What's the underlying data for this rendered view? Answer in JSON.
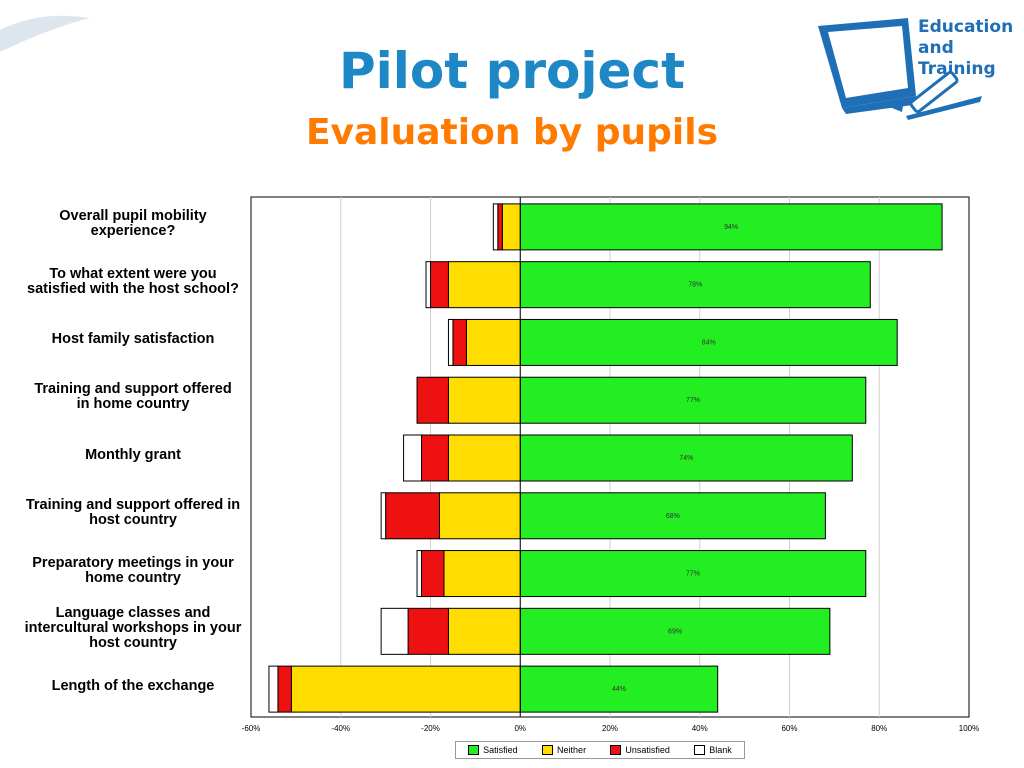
{
  "slide": {
    "title": "Pilot project",
    "subtitle": "Evaluation by pupils",
    "title_color": "#1e87c6",
    "subtitle_color": "#ff7a00"
  },
  "logo": {
    "icon": "computer-monitor-with-pencil-icon",
    "line1": "Education",
    "line2": "and",
    "line3": "Training",
    "color": "#1e6fb6"
  },
  "chart_data": {
    "type": "bar",
    "orientation": "horizontal",
    "stacked": "diverging",
    "categories": [
      [
        "Overall pupil mobility",
        "experience?"
      ],
      [
        "To what extent were you",
        "satisfied with the host school?"
      ],
      [
        "Host family satisfaction"
      ],
      [
        "Training and support offered",
        "in home country"
      ],
      [
        "Monthly grant"
      ],
      [
        "Training and support offered in",
        "host country"
      ],
      [
        "Preparatory meetings in your",
        "home country"
      ],
      [
        "Language classes and",
        "intercultural workshops in your",
        "host country"
      ],
      [
        "Length of the exchange"
      ]
    ],
    "series": [
      {
        "name": "Satisfied",
        "color": "#22ee22",
        "values": [
          94,
          78,
          84,
          77,
          74,
          68,
          77,
          69,
          44
        ]
      },
      {
        "name": "Neither",
        "color": "#ffdd00",
        "values": [
          4,
          16,
          12,
          16,
          16,
          18,
          17,
          16,
          51
        ]
      },
      {
        "name": "Unsatisfied",
        "color": "#ee1111",
        "values": [
          1,
          4,
          3,
          7,
          6,
          12,
          5,
          9,
          3
        ]
      },
      {
        "name": "Blank",
        "color": "#ffffff",
        "values": [
          1,
          1,
          1,
          0,
          4,
          1,
          1,
          6,
          2
        ]
      }
    ],
    "data_labels": [
      "94%",
      "78%",
      "84%",
      "77%",
      "74%",
      "68%",
      "77%",
      "69%",
      "44%"
    ],
    "xlim": [
      -60,
      100
    ],
    "xticks": [
      "-60%",
      "-40%",
      "-20%",
      "0%",
      "20%",
      "40%",
      "60%",
      "80%",
      "100%"
    ],
    "xtick_values": [
      -60,
      -40,
      -20,
      0,
      20,
      40,
      60,
      80,
      100
    ],
    "grid": true,
    "legend_position": "bottom"
  }
}
